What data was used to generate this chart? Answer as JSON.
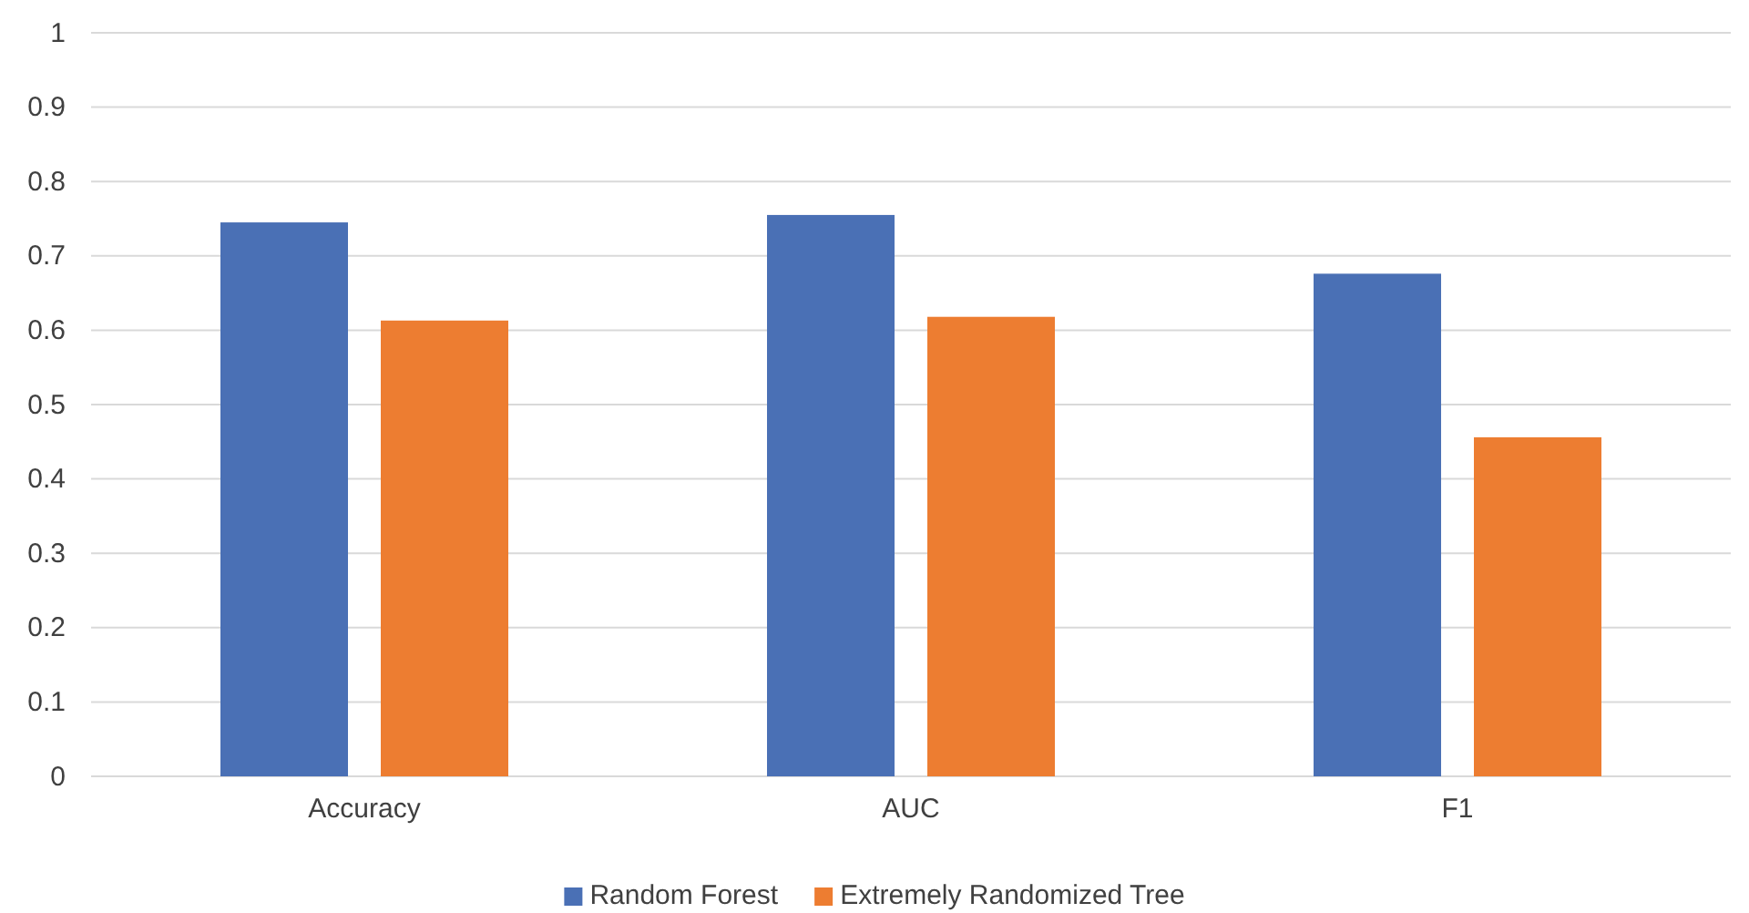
{
  "chart_data": {
    "type": "bar",
    "categories": [
      "Accuracy",
      "AUC",
      "F1"
    ],
    "series": [
      {
        "name": "Random Forest",
        "color": "#4a70b5",
        "values": [
          0.745,
          0.755,
          0.676
        ]
      },
      {
        "name": "Extremely Randomized Tree",
        "color": "#ed7d31",
        "values": [
          0.613,
          0.618,
          0.456
        ]
      }
    ],
    "ylim": [
      0,
      1
    ],
    "yticks": [
      0,
      0.1,
      0.2,
      0.3,
      0.4,
      0.5,
      0.6,
      0.7,
      0.8,
      0.9,
      1
    ],
    "grid": "y",
    "legend": "bottom"
  }
}
